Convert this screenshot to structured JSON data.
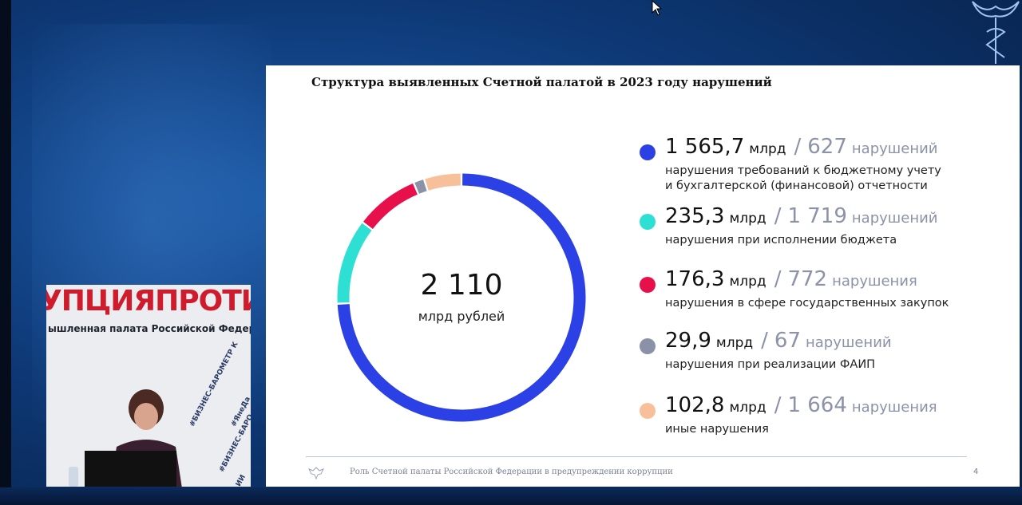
{
  "slide": {
    "title": "Структура  выявленных Счетной палатой в 2023 году нарушений",
    "center_value": "2 110",
    "center_unit": "млрд рублей",
    "footer_text": "Роль Счетной палаты Российской Федерации в предупреждении коррупции",
    "page_number": "4"
  },
  "chart_data": {
    "type": "pie",
    "total": 2110,
    "unit": "млрд рублей",
    "slices": [
      {
        "value": 1565.7,
        "value_label": "1 565,7",
        "unit": "млрд",
        "count_label": "627",
        "count_word": "нарушений",
        "description": [
          "нарушения требований к бюджетному учету",
          "и бухгалтерской (финансовой) отчетности"
        ],
        "color": "#2b41e6"
      },
      {
        "value": 235.3,
        "value_label": "235,3",
        "unit": "млрд",
        "count_label": "1 719",
        "count_word": "нарушений",
        "description": [
          "нарушения при исполнении бюджета"
        ],
        "color": "#2ee0d4"
      },
      {
        "value": 176.3,
        "value_label": "176,3",
        "unit": "млрд",
        "count_label": "772",
        "count_word": "нарушения",
        "description": [
          "нарушения в сфере государственных закупок"
        ],
        "color": "#e8104a"
      },
      {
        "value": 29.9,
        "value_label": "29,9",
        "unit": "млрд",
        "count_label": "67",
        "count_word": "нарушений",
        "description": [
          "нарушения при реализации ФАИП"
        ],
        "color": "#8b92a8"
      },
      {
        "value": 102.8,
        "value_label": "102,8",
        "unit": "млрд",
        "count_label": "1 664",
        "count_word": "нарушения",
        "description": [
          "иные нарушения"
        ],
        "color": "#f8c09a"
      }
    ]
  },
  "video": {
    "banner_line1": "УПЦИЯПРОТИВ",
    "banner_line2": "ышленная палата Российской Федерации",
    "tags": [
      "#БИЗНЕС-БАРОМЕТР К",
      "#ЯнеДа",
      "#БИЗНЕС-БАРО",
      "ИИ"
    ]
  },
  "icons": {
    "cursor": "mouse-pointer-icon",
    "corner": "accounts-chamber-emblem-icon",
    "footer": "eagle-emblem-icon"
  }
}
